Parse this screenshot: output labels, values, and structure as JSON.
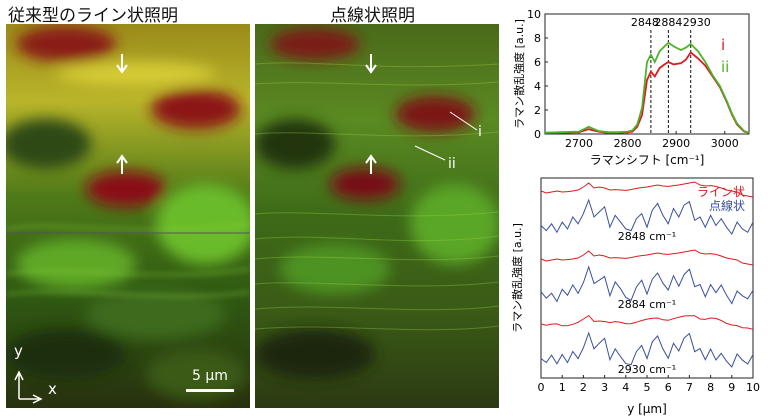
{
  "panel_left": {
    "title": "従来型のライン状照明",
    "axis_y": "y",
    "axis_x": "x",
    "scalebar": "5 µm"
  },
  "panel_middle": {
    "title": "点線状照明",
    "marker_i": "i",
    "marker_ii": "ii"
  },
  "colors": {
    "red": "#e0191e",
    "green": "#4bb32a",
    "blue": "#3a4f9c"
  },
  "chart_data": [
    {
      "type": "line",
      "xlabel": "ラマンシフト [cm⁻¹]",
      "ylabel": "ラマン散乱強度 [a.u.]",
      "xlim": [
        2630,
        3050
      ],
      "ylim": [
        0,
        10
      ],
      "xticks": [
        "2700",
        "2800",
        "2900",
        "3000"
      ],
      "yticks": [
        "0",
        "2",
        "4",
        "6",
        "8",
        "10"
      ],
      "annotations": [
        "2848",
        "2884",
        "2930"
      ],
      "annotation_x": [
        2848,
        2884,
        2930
      ],
      "legend_placement": "right",
      "series": [
        {
          "name": "i",
          "color": "#e0191e",
          "x": [
            2630,
            2660,
            2700,
            2720,
            2740,
            2760,
            2780,
            2800,
            2810,
            2820,
            2830,
            2840,
            2848,
            2856,
            2866,
            2876,
            2884,
            2895,
            2910,
            2920,
            2930,
            2945,
            2960,
            2975,
            2990,
            3005,
            3015,
            3025,
            3040,
            3050
          ],
          "y": [
            0.1,
            0.1,
            0.15,
            0.4,
            0.2,
            0.1,
            0.1,
            0.15,
            0.2,
            0.6,
            1.6,
            4.5,
            5.2,
            4.8,
            5.5,
            5.8,
            6.0,
            5.8,
            5.9,
            6.2,
            6.8,
            6.3,
            5.7,
            4.8,
            3.9,
            2.6,
            1.6,
            0.8,
            0.2,
            0.1
          ]
        },
        {
          "name": "ii",
          "color": "#4bb32a",
          "x": [
            2630,
            2660,
            2700,
            2720,
            2740,
            2760,
            2780,
            2800,
            2810,
            2820,
            2830,
            2840,
            2848,
            2856,
            2866,
            2876,
            2884,
            2895,
            2910,
            2920,
            2930,
            2945,
            2960,
            2975,
            2990,
            3005,
            3015,
            3025,
            3040,
            3050
          ],
          "y": [
            0.1,
            0.15,
            0.2,
            0.6,
            0.25,
            0.15,
            0.15,
            0.2,
            0.3,
            0.8,
            2.2,
            6.0,
            6.6,
            6.0,
            6.9,
            7.3,
            7.6,
            7.3,
            7.0,
            7.2,
            7.5,
            6.9,
            6.0,
            4.9,
            4.0,
            2.7,
            1.7,
            0.9,
            0.25,
            0.1
          ]
        }
      ]
    },
    {
      "type": "line",
      "xlabel": "y [µm]",
      "ylabel": "ラマン散乱強度 [a.u.]",
      "xlim": [
        0,
        10
      ],
      "xticks": [
        "0",
        "1",
        "2",
        "3",
        "4",
        "5",
        "6",
        "7",
        "8",
        "9",
        "10"
      ],
      "annotations": [
        "2848 cm⁻¹",
        "2884 cm⁻¹",
        "2930 cm⁻¹"
      ],
      "legend_placement": "top-right",
      "series": [
        {
          "name": "ライン状",
          "color": "#e0191e"
        },
        {
          "name": "点線状",
          "color": "#3a4f9c"
        }
      ],
      "profile_x": [
        0,
        0.25,
        0.5,
        0.75,
        1,
        1.25,
        1.5,
        1.75,
        2,
        2.25,
        2.5,
        2.75,
        3,
        3.25,
        3.5,
        3.75,
        4,
        4.25,
        4.5,
        4.75,
        5,
        5.25,
        5.5,
        5.75,
        6,
        6.25,
        6.5,
        6.75,
        7,
        7.25,
        7.5,
        7.75,
        8,
        8.25,
        8.5,
        8.75,
        9,
        9.25,
        9.5,
        9.75,
        10
      ],
      "line_profile": [
        0.55,
        0.45,
        0.5,
        0.55,
        0.5,
        0.52,
        0.55,
        0.6,
        0.75,
        0.95,
        0.7,
        0.75,
        0.7,
        0.6,
        0.62,
        0.6,
        0.58,
        0.62,
        0.68,
        0.72,
        0.75,
        0.8,
        0.85,
        0.8,
        0.78,
        0.82,
        0.85,
        0.9,
        0.95,
        1.0,
        0.85,
        0.8,
        0.82,
        0.78,
        0.7,
        0.6,
        0.55,
        0.5,
        0.35,
        0.3,
        0.25
      ],
      "dot_profile": [
        0.25,
        0.1,
        0.3,
        0.05,
        0.35,
        0.15,
        0.5,
        0.3,
        0.6,
        1.0,
        0.5,
        0.65,
        0.8,
        0.2,
        0.55,
        0.35,
        0.15,
        0.1,
        0.45,
        0.6,
        0.2,
        0.7,
        0.9,
        0.55,
        0.3,
        0.75,
        0.5,
        0.85,
        0.95,
        0.4,
        0.5,
        0.2,
        0.55,
        0.25,
        0.45,
        0.2,
        0.0,
        0.35,
        0.15,
        0.05,
        0.35
      ]
    }
  ]
}
